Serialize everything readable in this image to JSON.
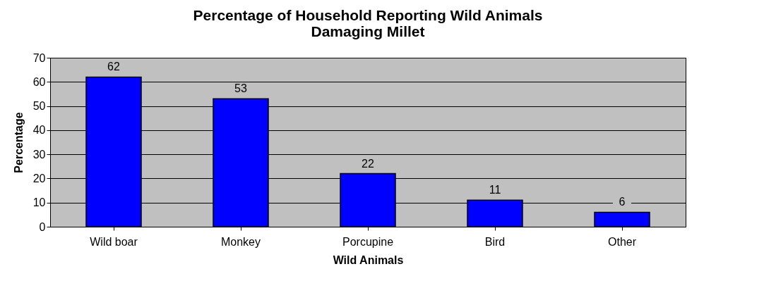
{
  "chart_data": {
    "type": "bar",
    "title": "Percentage of Household Reporting Wild Animals Damaging Millet",
    "xlabel": "Wild Animals",
    "ylabel": "Percentage",
    "categories": [
      "Wild boar",
      "Monkey",
      "Porcupine",
      "Bird",
      "Other"
    ],
    "values": [
      62,
      53,
      22,
      11,
      6
    ],
    "color": "#0000ff",
    "ylim": [
      0,
      70
    ],
    "yticks": [
      0,
      10,
      20,
      30,
      40,
      50,
      60,
      70
    ],
    "grid": "y",
    "data_labels": true
  }
}
